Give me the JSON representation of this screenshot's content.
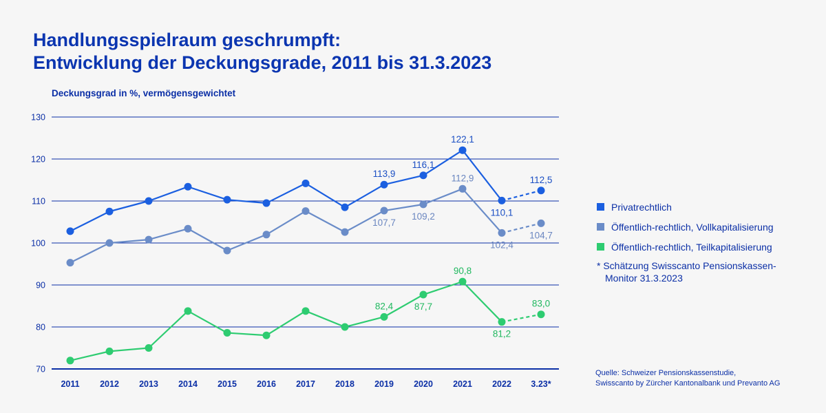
{
  "title_line1": "Handlungsspielraum geschrumpft:",
  "title_line2": "Entwicklung der Deckungsgrade, 2011 bis 31.3.2023",
  "note_line1": "* Schätzung Swisscanto Pensionskassen-",
  "note_line2": "Monitor 31.3.2023",
  "source_line1": "Quelle: Schweizer Pensionskassenstudie,",
  "source_line2": "Swisscanto by Zürcher Kantonalbank und Prevanto AG",
  "chart_data": {
    "type": "line",
    "ylabel": "Deckungsgrad in %, vermögensgewichtet",
    "xlabel": "",
    "ylim": [
      70,
      130
    ],
    "yticks": [
      70,
      80,
      90,
      100,
      110,
      120,
      130
    ],
    "grid": true,
    "legend_position": "right",
    "categories": [
      "2011",
      "2012",
      "2013",
      "2014",
      "2015",
      "2016",
      "2017",
      "2018",
      "2019",
      "2020",
      "2021",
      "2022",
      "3.23*"
    ],
    "series": [
      {
        "name": "Privatrechtlich",
        "color": "#1b5fe0",
        "values": [
          102.8,
          107.5,
          110.0,
          113.4,
          110.3,
          109.5,
          114.2,
          108.5,
          113.9,
          116.1,
          122.1,
          110.1,
          112.5
        ],
        "labels": {
          "8": "113,9",
          "9": "116,1",
          "10": "122,1",
          "11": "110,1",
          "12": "112,5"
        }
      },
      {
        "name": "Öffentlich-rechtlich, Vollkapitalisierung",
        "color": "#6a8cc8",
        "values": [
          95.3,
          100.0,
          100.8,
          103.4,
          98.2,
          102.0,
          107.6,
          102.6,
          107.7,
          109.2,
          112.9,
          102.4,
          104.7
        ],
        "labels": {
          "8": "107,7",
          "9": "109,2",
          "10": "112,9",
          "11": "102,4",
          "12": "104,7"
        }
      },
      {
        "name": "Öffentlich-rechtlich, Teilkapitalisierung",
        "color": "#2ecc71",
        "values": [
          72.0,
          74.2,
          75.0,
          83.8,
          78.6,
          78.0,
          83.8,
          80.0,
          82.4,
          87.7,
          90.8,
          81.2,
          83.0
        ],
        "labels": {
          "8": "82,4",
          "9": "87,7",
          "10": "90,8",
          "11": "81,2",
          "12": "83,0"
        }
      }
    ],
    "last_segment_dashed": true
  }
}
